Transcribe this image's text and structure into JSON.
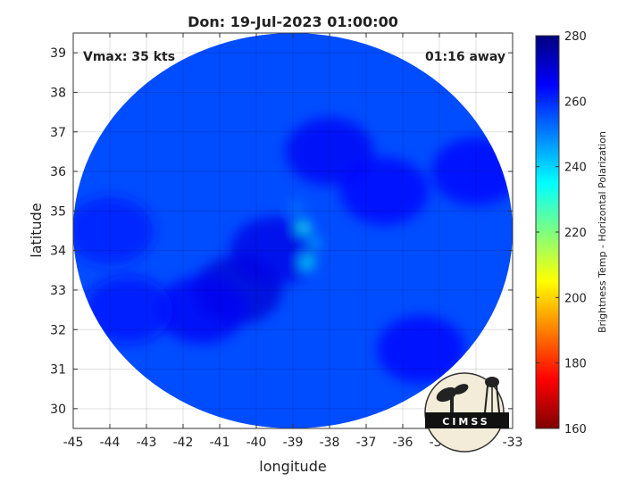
{
  "chart_data": {
    "type": "heatmap",
    "title": "Don: 19-Jul-2023 01:00:00",
    "xlabel": "longitude",
    "ylabel": "latitude",
    "xlim": [
      -45,
      -33
    ],
    "ylim": [
      29.5,
      39.5
    ],
    "x_ticks": [
      -45,
      -44,
      -43,
      -42,
      -41,
      -40,
      -39,
      -38,
      -37,
      -36,
      -35,
      -34,
      -33
    ],
    "y_ticks": [
      30,
      31,
      32,
      33,
      34,
      35,
      36,
      37,
      38,
      39
    ],
    "grid": true,
    "annotations": {
      "vmax": "Vmax: 35 kts",
      "time_away": "01:16 away"
    },
    "colorbar": {
      "label": "Brightness Temp - Horizontal Polarization",
      "range": [
        160,
        280
      ],
      "ticks": [
        160,
        180,
        200,
        220,
        240,
        260,
        280
      ]
    },
    "swath": {
      "center_lon": -39,
      "center_lat": 34.5,
      "radius_lon": 6,
      "radius_lat": 5
    },
    "background_temp": 256,
    "features": [
      {
        "lon": -38.7,
        "lat": 34.6,
        "temp": 232
      },
      {
        "lon": -38.6,
        "lat": 33.7,
        "temp": 236
      },
      {
        "lon": -38.4,
        "lat": 34.2,
        "temp": 245
      },
      {
        "lon": -38.9,
        "lat": 35.1,
        "temp": 250
      },
      {
        "lon": -39.5,
        "lat": 34.0,
        "temp": 268
      },
      {
        "lon": -40.5,
        "lat": 33.0,
        "temp": 270
      },
      {
        "lon": -41.5,
        "lat": 32.5,
        "temp": 266
      },
      {
        "lon": -38.0,
        "lat": 36.5,
        "temp": 266
      },
      {
        "lon": -36.5,
        "lat": 35.5,
        "temp": 264
      },
      {
        "lon": -35.5,
        "lat": 31.5,
        "temp": 264
      },
      {
        "lon": -44.0,
        "lat": 34.5,
        "temp": 262
      },
      {
        "lon": -43.5,
        "lat": 32.5,
        "temp": 263
      },
      {
        "lon": -34.0,
        "lat": 36.0,
        "temp": 265
      }
    ]
  },
  "logo": {
    "name": "cimss-logo",
    "text": "CIMSS"
  }
}
